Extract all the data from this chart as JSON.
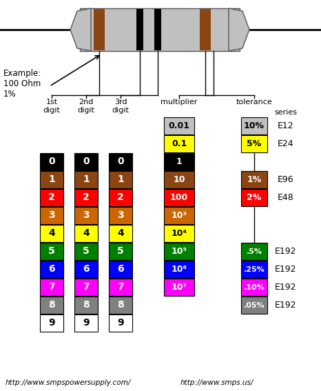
{
  "bg_color": "#ffffff",
  "color_bands": [
    {
      "color": "#000000",
      "label": "0",
      "text_color": "#ffffff"
    },
    {
      "color": "#8B4513",
      "label": "1",
      "text_color": "#ffffff"
    },
    {
      "color": "#ff0000",
      "label": "2",
      "text_color": "#ffffff"
    },
    {
      "color": "#cc6600",
      "label": "3",
      "text_color": "#ffffff"
    },
    {
      "color": "#ffff00",
      "label": "4",
      "text_color": "#000000"
    },
    {
      "color": "#008000",
      "label": "5",
      "text_color": "#ffffff"
    },
    {
      "color": "#0000ff",
      "label": "6",
      "text_color": "#ffffff"
    },
    {
      "color": "#ff00ff",
      "label": "7",
      "text_color": "#ffffff"
    },
    {
      "color": "#808080",
      "label": "8",
      "text_color": "#ffffff"
    },
    {
      "color": "#ffffff",
      "label": "9",
      "text_color": "#000000"
    }
  ],
  "multiplier_bands": [
    {
      "color": "#c0c0c0",
      "label": "0.01",
      "text_color": "#000000"
    },
    {
      "color": "#ffff00",
      "label": "0.1",
      "text_color": "#000000"
    },
    {
      "color": "#000000",
      "label": "1",
      "text_color": "#ffffff"
    },
    {
      "color": "#8B4513",
      "label": "10",
      "text_color": "#ffffff"
    },
    {
      "color": "#ff0000",
      "label": "100",
      "text_color": "#ffffff"
    },
    {
      "color": "#cc6600",
      "label": "10³",
      "text_color": "#ffffff"
    },
    {
      "color": "#ffff00",
      "label": "10⁴",
      "text_color": "#000000"
    },
    {
      "color": "#008000",
      "label": "10⁵",
      "text_color": "#ffffff"
    },
    {
      "color": "#0000ff",
      "label": "10⁶",
      "text_color": "#ffffff"
    },
    {
      "color": "#ff00ff",
      "label": "10⁷",
      "text_color": "#ffffff"
    }
  ],
  "tolerance_top": [
    {
      "color": "#c0c0c0",
      "label": "10%",
      "text_color": "#000000",
      "series": "E12"
    },
    {
      "color": "#ffff00",
      "label": "5%",
      "text_color": "#000000",
      "series": "E24"
    }
  ],
  "tolerance_mid": [
    {
      "color": "#8B4513",
      "label": "1%",
      "text_color": "#ffffff",
      "series": "E96"
    },
    {
      "color": "#ff0000",
      "label": "2%",
      "text_color": "#ffffff",
      "series": "E48"
    }
  ],
  "tolerance_bot": [
    {
      "color": "#008000",
      "label": ".5%",
      "text_color": "#ffffff",
      "series": "E192"
    },
    {
      "color": "#0000ff",
      "label": ".25%",
      "text_color": "#ffffff",
      "series": "E192"
    },
    {
      "color": "#ff00ff",
      "label": ".10%",
      "text_color": "#ffffff",
      "series": "E192"
    },
    {
      "color": "#808080",
      "label": ".05%",
      "text_color": "#ffffff",
      "series": "E192"
    }
  ],
  "footer_left": "http://www.smpspowersupply.com/",
  "footer_right": "http://www.smps.us/",
  "example_text": "Example:\n100 Ohm\n1%"
}
